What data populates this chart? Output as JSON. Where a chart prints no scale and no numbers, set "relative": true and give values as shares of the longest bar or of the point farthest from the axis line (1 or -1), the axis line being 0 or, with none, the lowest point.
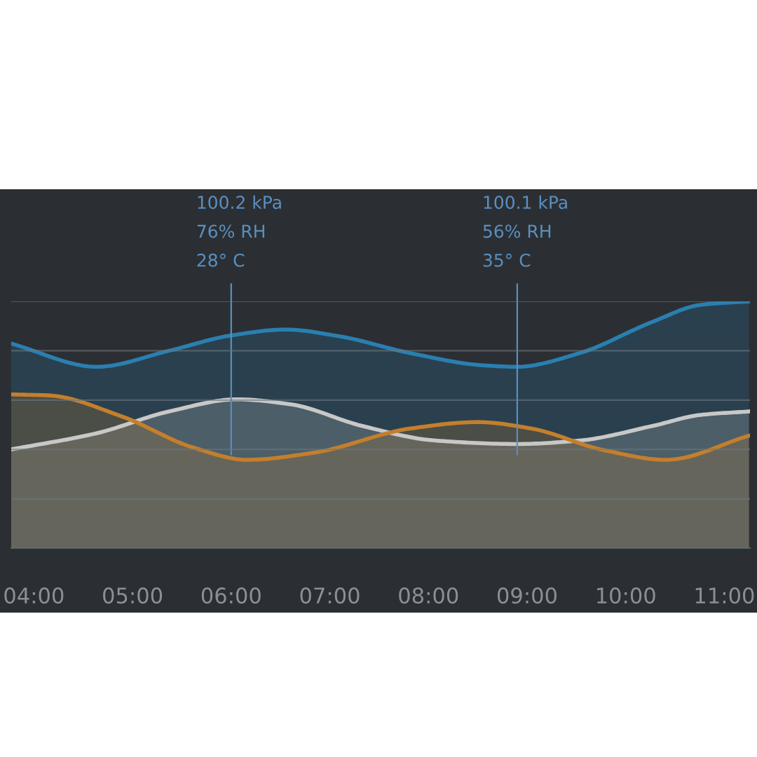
{
  "chart_data": {
    "type": "area",
    "relative": true,
    "xlim": [
      3.77,
      11.26
    ],
    "xticks": [
      {
        "value": 4,
        "label": "04:00"
      },
      {
        "value": 5,
        "label": "05:00"
      },
      {
        "value": 6,
        "label": "06:00"
      },
      {
        "value": 7,
        "label": "07:00"
      },
      {
        "value": 8,
        "label": "08:00"
      },
      {
        "value": 9,
        "label": "09:00"
      },
      {
        "value": 10,
        "label": "10:00"
      },
      {
        "value": 11,
        "label": "11:00"
      }
    ],
    "tick_labels": "x",
    "grid": "y",
    "legend": false,
    "series": [
      {
        "color": "#2a7fb0",
        "x": [
          3.77,
          4.64,
          5.37,
          6.0,
          6.55,
          7.09,
          7.82,
          8.55,
          8.9,
          9.53,
          10.27,
          10.76,
          11.25
        ],
        "values": [
          0.829,
          0.735,
          0.8,
          0.862,
          0.886,
          0.859,
          0.79,
          0.741,
          0.735,
          0.79,
          0.917,
          0.986,
          1.0
        ]
      },
      {
        "color": "#c8c8c8",
        "x": [
          3.77,
          4.64,
          5.37,
          6.06,
          6.6,
          7.33,
          8.07,
          8.9,
          9.53,
          10.27,
          10.76,
          11.25
        ],
        "values": [
          0.4,
          0.466,
          0.554,
          0.603,
          0.583,
          0.495,
          0.436,
          0.422,
          0.436,
          0.495,
          0.54,
          0.554
        ]
      },
      {
        "color": "#c47f2c",
        "x": [
          3.77,
          4.15,
          4.89,
          5.62,
          6.16,
          6.84,
          7.82,
          8.5,
          9.04,
          9.78,
          10.41,
          11.25
        ],
        "values": [
          0.623,
          0.619,
          0.534,
          0.407,
          0.358,
          0.387,
          0.485,
          0.511,
          0.485,
          0.397,
          0.358,
          0.456
        ]
      }
    ],
    "ref_lines": [
      {
        "axis": "x",
        "value": 6.0,
        "label": "100.2 kPa\n76% RH\n28° C",
        "color": "#5a8fc0"
      },
      {
        "axis": "x",
        "value": 8.9,
        "label": "100.1 kPa\n56% RH\n35° C",
        "color": "#5a8fc0"
      }
    ]
  }
}
